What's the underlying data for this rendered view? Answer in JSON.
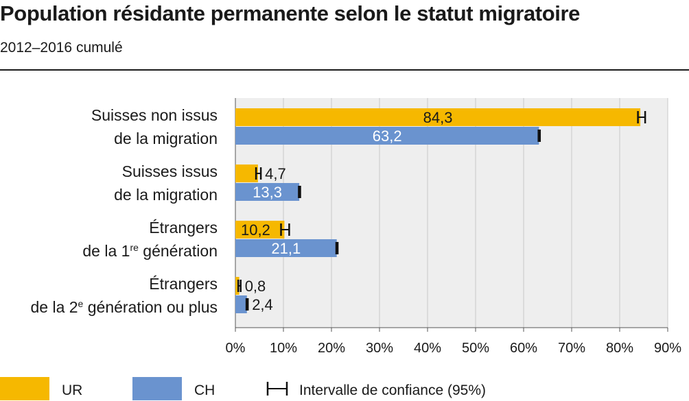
{
  "title": "Population résidante permanente selon le statut migratoire",
  "subtitle": "2012–2016 cumulé",
  "chart_data": {
    "type": "bar",
    "orientation": "horizontal",
    "categories": [
      {
        "line1": "Suisses non issus",
        "line2": "de la migration",
        "sup": "",
        "line2_rest": ""
      },
      {
        "line1": "Suisses issus",
        "line2": "de la migration",
        "sup": "",
        "line2_rest": ""
      },
      {
        "line1": "Étrangers",
        "line2": "de la 1",
        "sup": "re",
        "line2_rest": " génération"
      },
      {
        "line1": "Étrangers",
        "line2": "de la 2",
        "sup": "e",
        "line2_rest": " génération ou plus"
      }
    ],
    "series": [
      {
        "name": "UR",
        "color": "#f6b800",
        "values": [
          84.3,
          4.7,
          10.2,
          0.8
        ],
        "labels": [
          "84,3",
          "4,7",
          "10,2",
          "0,8"
        ],
        "ci_low": [
          83.8,
          4.3,
          9.5,
          0.6
        ],
        "ci_high": [
          85.3,
          5.3,
          11.2,
          1.1
        ]
      },
      {
        "name": "CH",
        "color": "#6a93cf",
        "values": [
          63.2,
          13.3,
          21.1,
          2.4
        ],
        "labels": [
          "63,2",
          "13,3",
          "21,1",
          "2,4"
        ],
        "ci_low": [
          63.1,
          13.2,
          21.0,
          2.3
        ],
        "ci_high": [
          63.4,
          13.5,
          21.3,
          2.6
        ]
      }
    ],
    "xlim": [
      0,
      90
    ],
    "xticks": [
      "0%",
      "10%",
      "20%",
      "30%",
      "40%",
      "50%",
      "60%",
      "70%",
      "80%",
      "90%"
    ],
    "grid": true,
    "legend": {
      "placement": "bottom",
      "items": [
        "UR",
        "CH"
      ],
      "ci_label": "Intervalle de confiance (95%)"
    }
  }
}
